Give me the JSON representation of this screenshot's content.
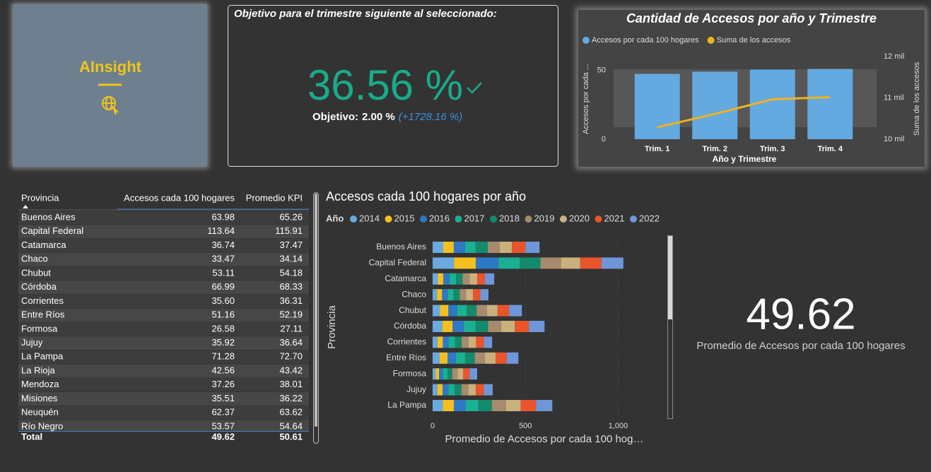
{
  "logo": {
    "text": "AInsight"
  },
  "kpi": {
    "title": "Objetivo para el trimestre siguiente al seleccionado:",
    "value": "36.56 %",
    "goal_label": "Objetivo:",
    "goal": "2.00 %",
    "change": "(+1728.16 %)"
  },
  "table": {
    "header": [
      "Provincia",
      "Accesos cada 100 hogares",
      "Promedio KPI"
    ],
    "rows": [
      [
        "Buenos Aires",
        "63.98",
        "65.26"
      ],
      [
        "Capital Federal",
        "113.64",
        "115.91"
      ],
      [
        "Catamarca",
        "36.74",
        "37.47"
      ],
      [
        "Chaco",
        "33.47",
        "34.14"
      ],
      [
        "Chubut",
        "53.11",
        "54.18"
      ],
      [
        "Córdoba",
        "66.99",
        "68.33"
      ],
      [
        "Corrientes",
        "35.60",
        "36.31"
      ],
      [
        "Entre Ríos",
        "51.16",
        "52.19"
      ],
      [
        "Formosa",
        "26.58",
        "27.11"
      ],
      [
        "Jujuy",
        "35.92",
        "36.64"
      ],
      [
        "La Pampa",
        "71.28",
        "72.70"
      ],
      [
        "La Rioja",
        "42.56",
        "43.42"
      ],
      [
        "Mendoza",
        "37.26",
        "38.01"
      ],
      [
        "Misiones",
        "35.51",
        "36.22"
      ],
      [
        "Neuquén",
        "62.37",
        "63.62"
      ],
      [
        "Río Negro",
        "53.57",
        "54.64"
      ]
    ],
    "total": [
      "Total",
      "49.62",
      "50.61"
    ]
  },
  "card": {
    "value": "49.62",
    "label": "Promedio de Accesos por cada 100 hogares"
  },
  "chart_data": [
    {
      "type": "combo",
      "title": "Cantidad de Accesos por año y Trimestre",
      "categories": [
        "Trim. 1",
        "Trim. 2",
        "Trim. 3",
        "Trim. 4"
      ],
      "x_label": "Año y Trimestre",
      "y_label": "Accesos por cada ...",
      "y2_label": "Suma de los accesos",
      "series": [
        {
          "name": "Accesos por cada 100 hogares",
          "color": "#64a9df",
          "type": "bar",
          "values": [
            47.4,
            49.0,
            50.5,
            51.0
          ]
        },
        {
          "name": "Suma de los accesos",
          "color": "#f0b31e",
          "type": "line",
          "axis": "y2",
          "values": [
            10288,
            10610,
            10966,
            11017
          ]
        }
      ],
      "ylim": [
        0,
        60
      ],
      "yticks": [
        0,
        50
      ],
      "y2lim": [
        10000,
        12000
      ],
      "y2ticks": [
        {
          "value": 10000,
          "label": "10 mil"
        },
        {
          "value": 11000,
          "label": "11 mil"
        },
        {
          "value": 12000,
          "label": "12 mil"
        }
      ]
    },
    {
      "type": "stacked_barh",
      "title": "Accesos cada 100 hogares por año",
      "legend_title": "Año",
      "categories": [
        "Buenos Aires",
        "Capital Federal",
        "Catamarca",
        "Chaco",
        "Chubut",
        "Córdoba",
        "Corrientes",
        "Entre Ríos",
        "Formosa",
        "Jujuy",
        "La Pampa"
      ],
      "series": [
        {
          "name": "2014",
          "color": "#6aaae0",
          "values": [
            57,
            115,
            28,
            24,
            40,
            52,
            26,
            38,
            16,
            26,
            55
          ]
        },
        {
          "name": "2015",
          "color": "#f4c01f",
          "values": [
            57,
            118,
            30,
            27,
            45,
            56,
            29,
            42,
            19,
            28,
            60
          ]
        },
        {
          "name": "2016",
          "color": "#2e78c6",
          "values": [
            61,
            122,
            33,
            30,
            48,
            60,
            31,
            46,
            21,
            31,
            64
          ]
        },
        {
          "name": "2017",
          "color": "#1bb092",
          "values": [
            57,
            115,
            35,
            32,
            51,
            64,
            34,
            49,
            24,
            34,
            68
          ]
        },
        {
          "name": "2018",
          "color": "#138a6c",
          "values": [
            65,
            111,
            36,
            33,
            53,
            67,
            36,
            52,
            26,
            36,
            72
          ]
        },
        {
          "name": "2019",
          "color": "#a68b6c",
          "values": [
            65,
            111,
            38,
            35,
            55,
            70,
            38,
            55,
            28,
            38,
            76
          ]
        },
        {
          "name": "2020",
          "color": "#c9b07d",
          "values": [
            65,
            103,
            40,
            37,
            58,
            74,
            40,
            57,
            31,
            40,
            80
          ]
        },
        {
          "name": "2021",
          "color": "#e9542b",
          "values": [
            73,
            115,
            42,
            39,
            62,
            76,
            42,
            60,
            34,
            43,
            82
          ]
        },
        {
          "name": "2022",
          "color": "#6f96d8",
          "values": [
            76,
            118,
            50,
            44,
            69,
            84,
            45,
            63,
            41,
            48,
            88
          ]
        }
      ],
      "xlim": [
        0,
        1200
      ],
      "xticks": [
        0,
        500,
        {
          "value": 1000,
          "label": "1,000"
        }
      ],
      "x_label": "Promedio de Accesos por cada 100 hog…",
      "y_label": "Provincia",
      "grid": true
    }
  ]
}
